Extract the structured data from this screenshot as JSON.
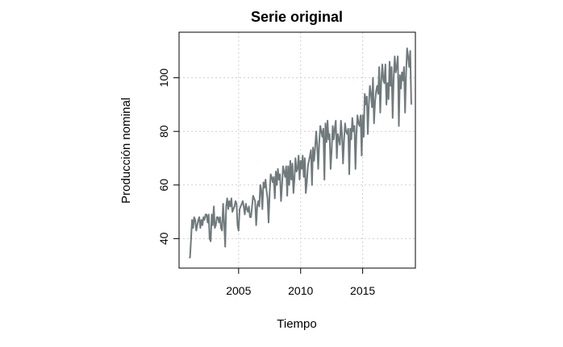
{
  "chart_data": {
    "type": "line",
    "title": "Serie original",
    "xlabel": "Tiempo",
    "ylabel": "Producción nominal",
    "xlim": [
      2000.2,
      2019.25
    ],
    "ylim": [
      29,
      117
    ],
    "xticks": [
      2005,
      2010,
      2015
    ],
    "yticks": [
      40,
      60,
      80,
      100
    ],
    "grid": true,
    "line_color": "#707a7c",
    "series": [
      {
        "frequency": "monthly",
        "start": "2001-01",
        "values": [
          33,
          33,
          40,
          47,
          44,
          48,
          47,
          43,
          45,
          47,
          48,
          44,
          47,
          45,
          48,
          47,
          49,
          49,
          46,
          49,
          40,
          39,
          49,
          45,
          52,
          44,
          45,
          48,
          48,
          46,
          48,
          44,
          43,
          53,
          46,
          37,
          52,
          55,
          51,
          54,
          52,
          55,
          50,
          51,
          52,
          54,
          53,
          45,
          43,
          51,
          52,
          53,
          54,
          52,
          49,
          53,
          51,
          50,
          52,
          48,
          48,
          52,
          56,
          55,
          54,
          45,
          52,
          54,
          52,
          60,
          58,
          51,
          61,
          59,
          62,
          58,
          55,
          46,
          57,
          64,
          63,
          61,
          63,
          55,
          65,
          60,
          66,
          62,
          64,
          54,
          60,
          67,
          65,
          63,
          67,
          56,
          67,
          60,
          69,
          62,
          68,
          57,
          62,
          70,
          65,
          66,
          71,
          62,
          69,
          66,
          71,
          63,
          70,
          57,
          61,
          67,
          69,
          71,
          73,
          60,
          74,
          69,
          74,
          80,
          75,
          66,
          76,
          82,
          80,
          78,
          81,
          62,
          83,
          76,
          84,
          77,
          79,
          66,
          73,
          82,
          77,
          81,
          84,
          70,
          79,
          77,
          75,
          84,
          79,
          68,
          77,
          83,
          80,
          79,
          81,
          64,
          81,
          77,
          85,
          80,
          82,
          66,
          79,
          86,
          83,
          82,
          86,
          71,
          86,
          78,
          94,
          90,
          93,
          79,
          90,
          97,
          94,
          89,
          100,
          83,
          91,
          95,
          97,
          94,
          104,
          87,
          99,
          105,
          99,
          98,
          105,
          90,
          98,
          92,
          106,
          97,
          104,
          85,
          100,
          108,
          102,
          104,
          108,
          82,
          101,
          96,
          102,
          99,
          104,
          87,
          102,
          111,
          108,
          104,
          110,
          90
        ]
      }
    ]
  }
}
